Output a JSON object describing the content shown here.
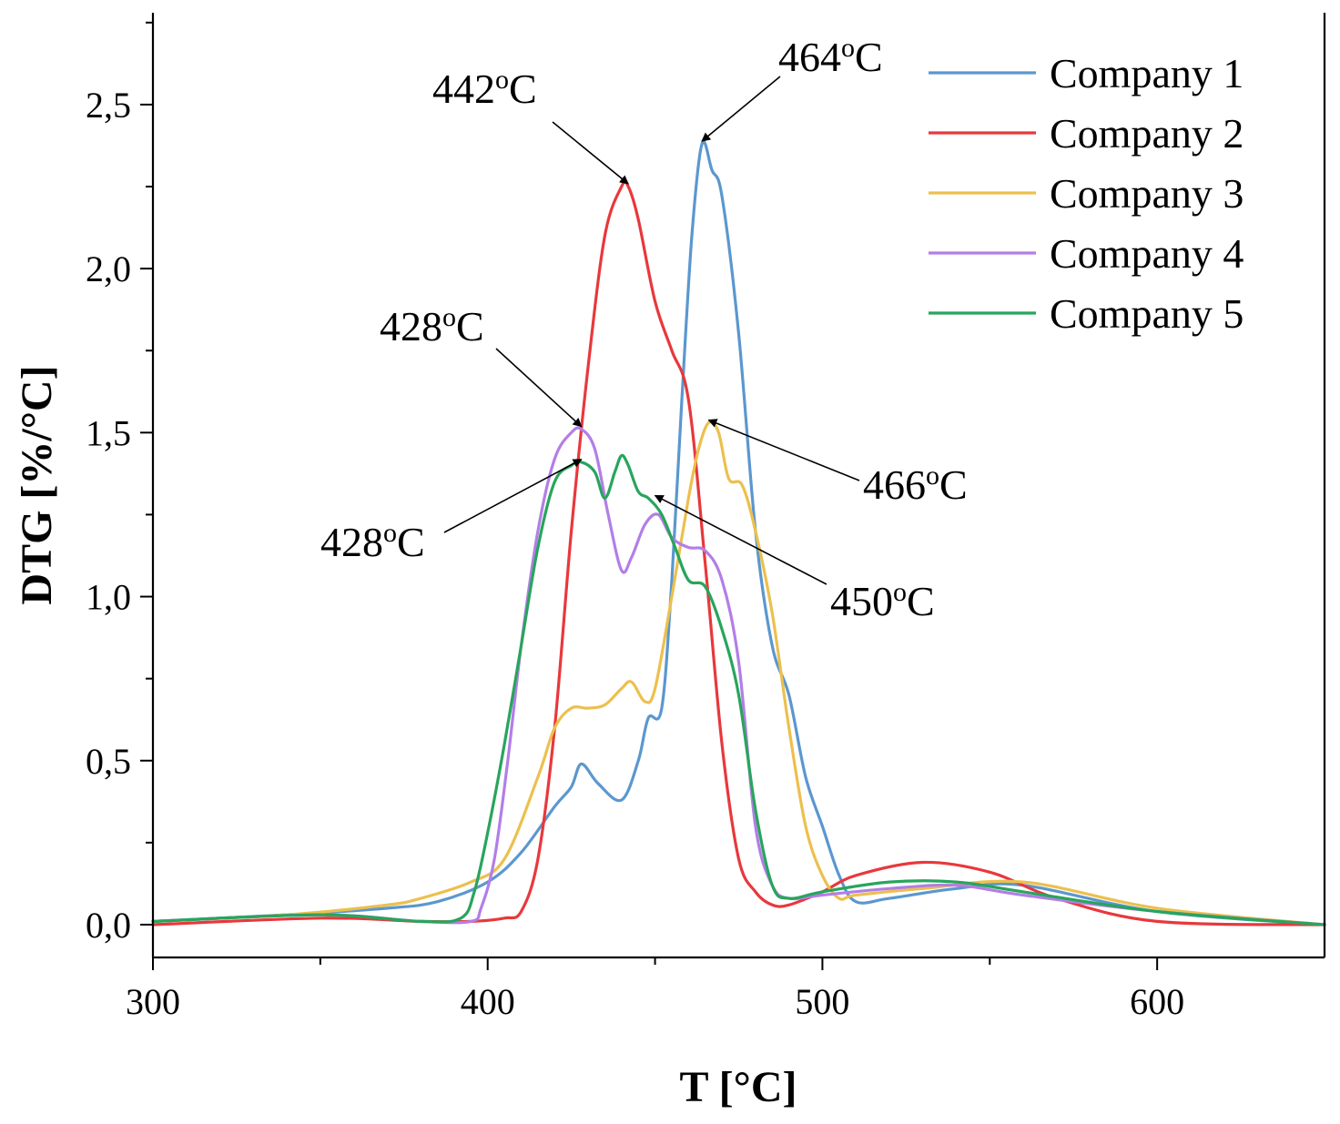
{
  "chart_data": {
    "type": "line",
    "title": "",
    "xlabel": "T [°C]",
    "ylabel": "DTG [%/°C]",
    "xlim": [
      300,
      650
    ],
    "ylim": [
      -0.1,
      2.78
    ],
    "xticks": [
      300,
      400,
      500,
      600
    ],
    "xtick_labels": [
      "300",
      "400",
      "500",
      "600"
    ],
    "yticks": [
      0.0,
      0.5,
      1.0,
      1.5,
      2.0,
      2.5
    ],
    "ytick_labels": [
      "0,0",
      "0,5",
      "1,0",
      "1,5",
      "2,0",
      "2,5"
    ],
    "legend_position": "top-right",
    "series": [
      {
        "name": "Company 1",
        "color": "#5b97cf",
        "x": [
          300,
          340,
          370,
          385,
          400,
          410,
          420,
          425,
          428,
          433,
          440,
          445,
          448,
          452,
          455,
          458,
          461,
          464,
          467,
          470,
          475,
          480,
          485,
          490,
          495,
          500,
          505,
          510,
          520,
          540,
          560,
          600,
          650
        ],
        "y": [
          0.01,
          0.03,
          0.05,
          0.07,
          0.13,
          0.22,
          0.36,
          0.42,
          0.49,
          0.43,
          0.38,
          0.5,
          0.63,
          0.66,
          1.05,
          1.6,
          2.1,
          2.38,
          2.3,
          2.22,
          1.8,
          1.2,
          0.85,
          0.7,
          0.45,
          0.3,
          0.15,
          0.07,
          0.08,
          0.11,
          0.12,
          0.04,
          0.0
        ]
      },
      {
        "name": "Company 2",
        "color": "#e8383c",
        "x": [
          300,
          350,
          380,
          395,
          405,
          410,
          415,
          420,
          425,
          430,
          435,
          440,
          442,
          445,
          450,
          455,
          460,
          465,
          470,
          475,
          480,
          485,
          490,
          500,
          510,
          530,
          550,
          570,
          600,
          650
        ],
        "y": [
          0.0,
          0.02,
          0.01,
          0.01,
          0.02,
          0.04,
          0.2,
          0.6,
          1.2,
          1.7,
          2.1,
          2.25,
          2.25,
          2.15,
          1.9,
          1.75,
          1.6,
          1.1,
          0.55,
          0.2,
          0.1,
          0.06,
          0.06,
          0.1,
          0.15,
          0.19,
          0.16,
          0.08,
          0.01,
          0.0
        ]
      },
      {
        "name": "Company 3",
        "color": "#ecc04e",
        "x": [
          300,
          340,
          370,
          380,
          395,
          405,
          415,
          420,
          425,
          430,
          435,
          440,
          443,
          447,
          450,
          455,
          460,
          463,
          466,
          469,
          472,
          476,
          480,
          485,
          490,
          495,
          500,
          505,
          510,
          530,
          560,
          600,
          650
        ],
        "y": [
          0.01,
          0.03,
          0.06,
          0.08,
          0.13,
          0.2,
          0.45,
          0.6,
          0.66,
          0.66,
          0.67,
          0.72,
          0.74,
          0.68,
          0.72,
          1.0,
          1.3,
          1.45,
          1.53,
          1.5,
          1.36,
          1.34,
          1.2,
          0.95,
          0.6,
          0.3,
          0.15,
          0.08,
          0.09,
          0.11,
          0.13,
          0.05,
          0.0
        ]
      },
      {
        "name": "Company 4",
        "color": "#b37ee7",
        "x": [
          300,
          350,
          380,
          395,
          398,
          402,
          406,
          410,
          415,
          420,
          425,
          428,
          432,
          436,
          440,
          443,
          447,
          451,
          455,
          460,
          465,
          470,
          475,
          480,
          485,
          490,
          500,
          520,
          540,
          560,
          600,
          650
        ],
        "y": [
          0.01,
          0.03,
          0.01,
          0.01,
          0.05,
          0.2,
          0.5,
          0.85,
          1.2,
          1.42,
          1.5,
          1.51,
          1.45,
          1.25,
          1.08,
          1.12,
          1.22,
          1.25,
          1.18,
          1.15,
          1.14,
          1.05,
          0.8,
          0.3,
          0.12,
          0.08,
          0.09,
          0.11,
          0.12,
          0.09,
          0.04,
          0.0
        ]
      },
      {
        "name": "Company 5",
        "color": "#28a55c",
        "x": [
          300,
          350,
          380,
          392,
          396,
          400,
          405,
          410,
          415,
          420,
          425,
          428,
          432,
          435,
          438,
          440,
          442,
          445,
          448,
          452,
          456,
          460,
          465,
          470,
          475,
          480,
          485,
          490,
          500,
          520,
          540,
          560,
          600,
          650
        ],
        "y": [
          0.01,
          0.03,
          0.01,
          0.02,
          0.1,
          0.28,
          0.55,
          0.85,
          1.15,
          1.35,
          1.4,
          1.41,
          1.38,
          1.3,
          1.38,
          1.43,
          1.4,
          1.32,
          1.3,
          1.25,
          1.15,
          1.05,
          1.03,
          0.9,
          0.7,
          0.35,
          0.12,
          0.08,
          0.1,
          0.13,
          0.13,
          0.1,
          0.04,
          0.0
        ]
      }
    ],
    "annotations": [
      {
        "label": "442",
        "unit": "oC",
        "x": 442,
        "y": 2.25
      },
      {
        "label": "464",
        "unit": "oC",
        "x": 464,
        "y": 2.38
      },
      {
        "label": "428",
        "unit": "oC",
        "x": 428,
        "y": 1.51
      },
      {
        "label": "428",
        "unit": "oC",
        "x": 428,
        "y": 1.41
      },
      {
        "label": "466",
        "unit": "oC",
        "x": 466,
        "y": 1.53
      },
      {
        "label": "450",
        "unit": "oC",
        "x": 450,
        "y": 1.3
      }
    ]
  }
}
